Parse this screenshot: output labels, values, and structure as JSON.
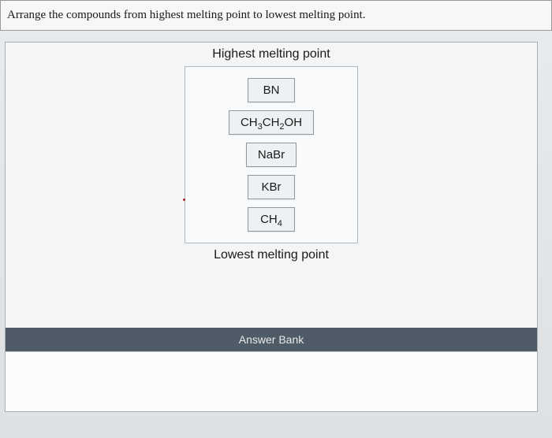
{
  "instruction": "Arrange the compounds from highest melting point to lowest melting point.",
  "ranking": {
    "top_label": "Highest melting point",
    "bottom_label": "Lowest melting point",
    "items": [
      {
        "formula_html": "BN"
      },
      {
        "formula_html": "CH<sub>3</sub>CH<sub>2</sub>OH"
      },
      {
        "formula_html": "NaBr"
      },
      {
        "formula_html": "KBr"
      },
      {
        "formula_html": "CH<sub>4</sub>"
      }
    ]
  },
  "answer_bank": {
    "header": "Answer Bank"
  },
  "colors": {
    "page_bg": "#d8dce0",
    "panel_bg": "#f3f5f6",
    "tile_bg": "#eef1f3",
    "bank_header_bg": "#4f5b66"
  }
}
